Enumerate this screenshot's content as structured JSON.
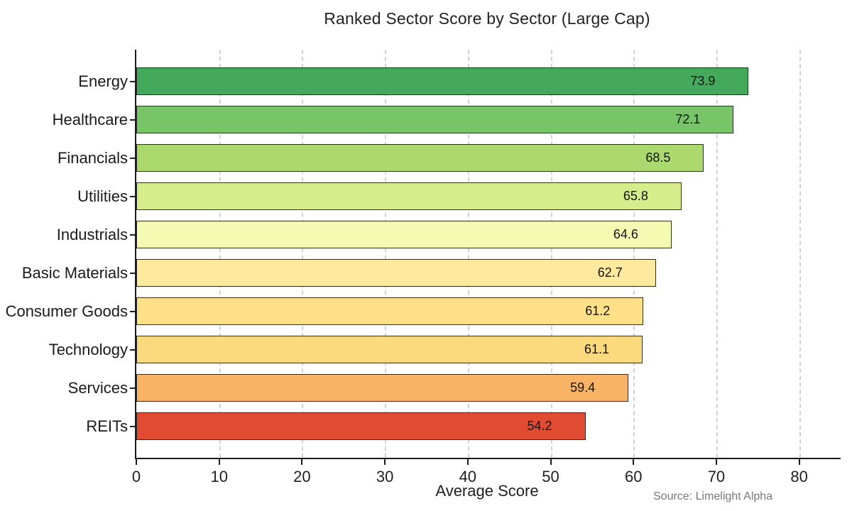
{
  "chart_data": {
    "type": "bar",
    "orientation": "horizontal",
    "title": "Ranked Sector Score by Sector (Large Cap)",
    "xlabel": "Average Score",
    "ylabel": "",
    "categories": [
      "Energy",
      "Healthcare",
      "Financials",
      "Utilities",
      "Industrials",
      "Basic Materials",
      "Consumer Goods",
      "Technology",
      "Services",
      "REITs"
    ],
    "values": [
      73.9,
      72.1,
      68.5,
      65.8,
      64.6,
      62.7,
      61.2,
      61.1,
      59.4,
      54.2
    ],
    "value_labels": [
      "73.9",
      "72.1",
      "68.5",
      "65.8",
      "64.6",
      "62.7",
      "61.2",
      "61.1",
      "59.4",
      "54.2"
    ],
    "bar_colors": [
      "#45a95c",
      "#77c566",
      "#abd96e",
      "#d7ed8c",
      "#f4fab2",
      "#fee99e",
      "#fee088",
      "#fdd97d",
      "#f9b365",
      "#e14b32"
    ],
    "xticks": [
      0,
      10,
      20,
      30,
      40,
      50,
      60,
      70,
      80
    ],
    "xlim": [
      0,
      85
    ],
    "grid": "vertical-dashed",
    "legend": "none",
    "source": "Source: Limelight Alpha"
  },
  "style": {
    "bar_border_color": "#2c2c2c",
    "grid_color": "#d2d2d2",
    "axis_color": "#1c1c1c",
    "title_color": "#222222",
    "source_color": "#787878",
    "background": "#ffffff"
  }
}
